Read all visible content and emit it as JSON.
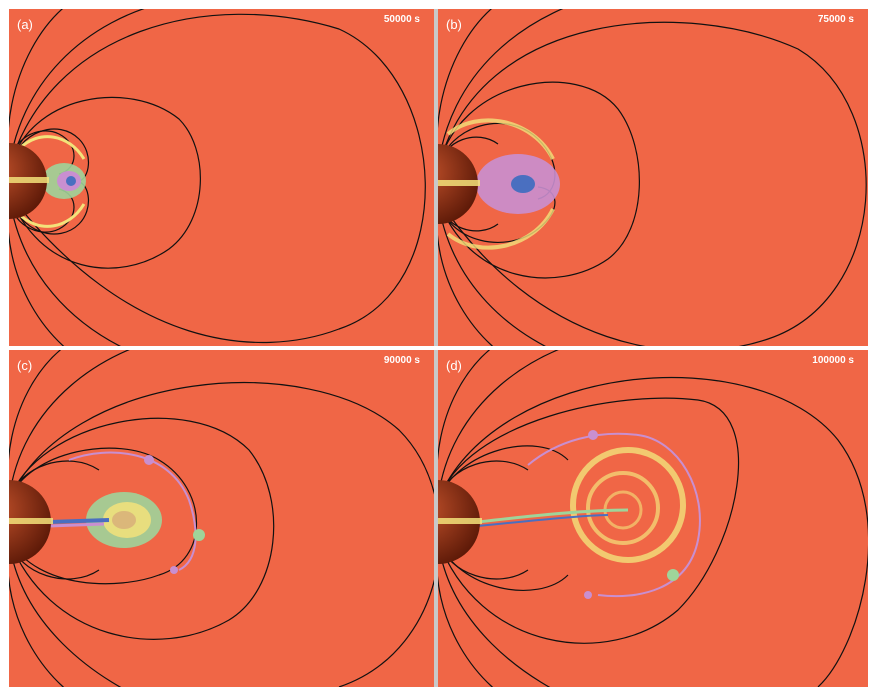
{
  "figure": {
    "panels": [
      {
        "label": "(a)",
        "time": "50000 s"
      },
      {
        "label": "(b)",
        "time": "75000 s"
      },
      {
        "label": "(c)",
        "time": "90000 s"
      },
      {
        "label": "(d)",
        "time": "100000 s"
      }
    ]
  },
  "colors": {
    "background": "#f06646",
    "field_lines": "#111111",
    "planet": "#8a2a12",
    "plasma_yellow": "#f3e27a",
    "plasma_green": "#9fd49a",
    "plasma_blue": "#4a6fc0",
    "plasma_purple": "#c98fd0"
  }
}
